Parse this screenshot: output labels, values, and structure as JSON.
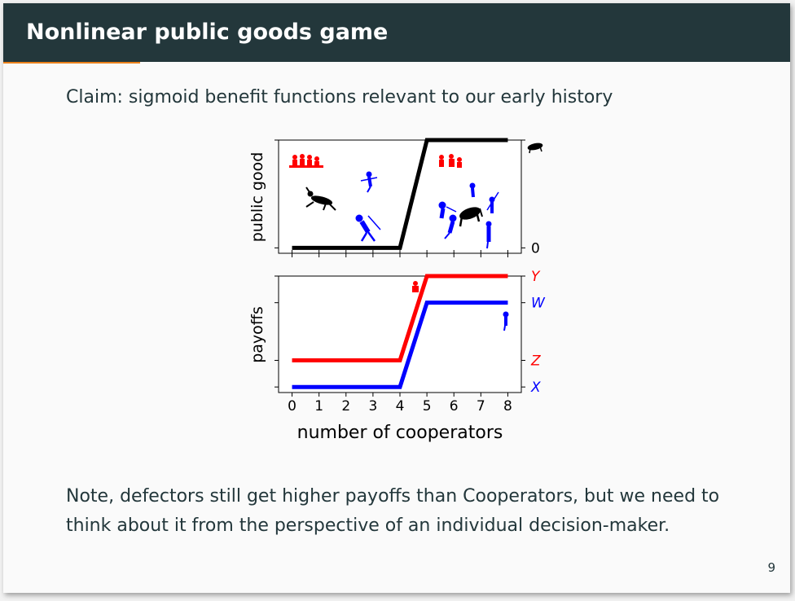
{
  "slide": {
    "title": "Nonlinear public goods game",
    "claim": "Claim: sigmoid benefit functions relevant to our early history",
    "note_line1": "Note, defectors still get higher payoffs than Cooperators, but we need to",
    "note_line2": "think about it from the perspective of an individual decision-maker.",
    "page_number": "9"
  },
  "colors": {
    "titlebar": "#23373b",
    "accent": "#eb811b",
    "red": "#ff0000",
    "blue": "#0000ff"
  },
  "chart_data": [
    {
      "type": "line",
      "ylabel": "public good",
      "xlim": [
        -0.5,
        8.5
      ],
      "ylim": [
        -0.05,
        1.0
      ],
      "x_ticks": [
        0,
        1,
        2,
        3,
        4,
        5,
        6,
        7,
        8
      ],
      "right_ticks": [
        {
          "label": "0",
          "value": 0
        },
        {
          "label": "",
          "value": 1
        }
      ],
      "series": [
        {
          "color": "#000000",
          "x": [
            0,
            4,
            5,
            8
          ],
          "y": [
            0,
            0,
            1,
            1
          ]
        }
      ],
      "icons": [
        "hunter-group-icon",
        "deer-icon",
        "hunter-icon",
        "mammoth-icon"
      ]
    },
    {
      "type": "line",
      "ylabel": "payoffs",
      "xlabel": "number of cooperators",
      "xlim": [
        -0.5,
        8.5
      ],
      "ylim": [
        -0.05,
        1.0
      ],
      "x_ticks": [
        0,
        1,
        2,
        3,
        4,
        5,
        6,
        7,
        8
      ],
      "right_ticks": [
        {
          "label": "Y",
          "value": 1.0,
          "color": "#ff0000"
        },
        {
          "label": "W",
          "value": 0.76,
          "color": "#0000ff"
        },
        {
          "label": "Z",
          "value": 0.24,
          "color": "#ff0000"
        },
        {
          "label": "X",
          "value": 0.0,
          "color": "#0000ff"
        }
      ],
      "series": [
        {
          "color": "#ff0000",
          "x": [
            0,
            4,
            5,
            8
          ],
          "y": [
            0.24,
            0.24,
            1.0,
            1.0
          ]
        },
        {
          "color": "#0000ff",
          "x": [
            0,
            4,
            5,
            8
          ],
          "y": [
            0.0,
            0.0,
            0.76,
            0.76
          ]
        }
      ],
      "icons": [
        "defector-icon",
        "cooperator-icon"
      ]
    }
  ]
}
